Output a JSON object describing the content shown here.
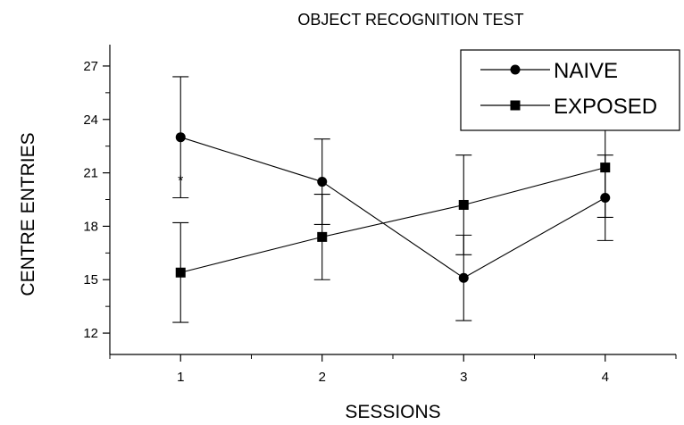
{
  "chart_data": {
    "type": "line",
    "title": "OBJECT RECOGNITION TEST",
    "xlabel": "SESSIONS",
    "ylabel": "CENTRE ENTRIES",
    "x": [
      1,
      2,
      3,
      4
    ],
    "xticks": [
      "1",
      "2",
      "3",
      "4"
    ],
    "xlim": [
      0.5,
      4.5
    ],
    "ylim": [
      10.8,
      28.2
    ],
    "yticks": [
      "12",
      "15",
      "18",
      "21",
      "24",
      "27"
    ],
    "ytick_values": [
      12,
      15,
      18,
      21,
      24,
      27
    ],
    "grid": false,
    "legend_position": "top-right",
    "series": [
      {
        "name": "NAIVE",
        "marker": "circle",
        "values": [
          23.0,
          20.5,
          15.1,
          19.6
        ],
        "error": [
          3.4,
          2.4,
          2.4,
          2.4
        ]
      },
      {
        "name": "EXPOSED",
        "marker": "square",
        "values": [
          15.4,
          17.4,
          19.2,
          21.3
        ],
        "error": [
          2.8,
          2.4,
          2.8,
          2.8
        ]
      }
    ],
    "annotations": [
      {
        "text": "*",
        "x": 1,
        "y": 20.8
      }
    ],
    "colors": {
      "line": "#000000",
      "background": "#ffffff"
    }
  }
}
